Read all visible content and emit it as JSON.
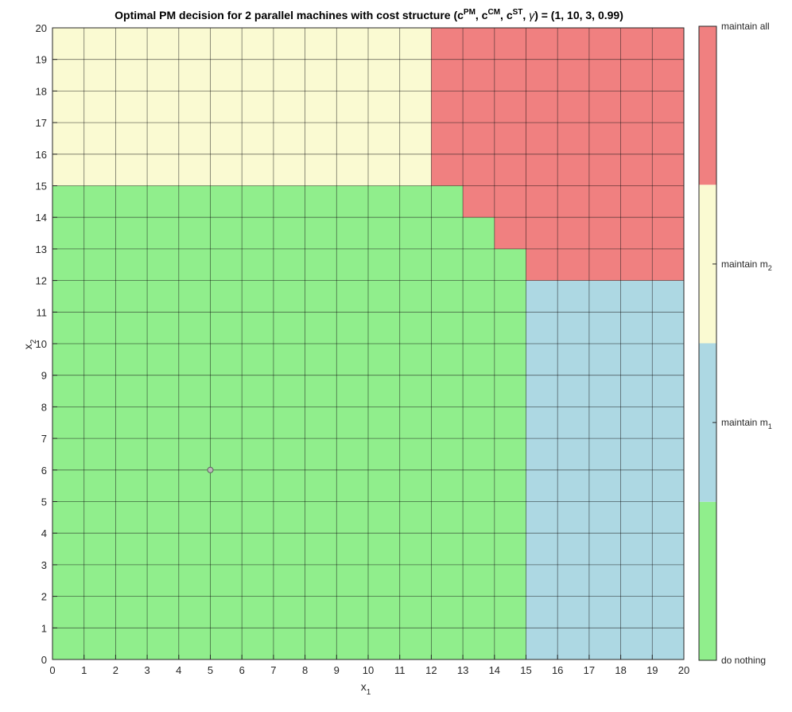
{
  "chart_data": {
    "type": "heatmap",
    "title_parts": {
      "t1": "Optimal PM decision for 2 parallel machines with cost structure (c",
      "s1": "PM",
      "t2": ", c",
      "s2": "CM",
      "t3": ", c",
      "s3": "ST",
      "t4": ", ",
      "gamma": "γ",
      "t5": ") = (1, 10, 3, 0.99)"
    },
    "xlabel": {
      "base": "x",
      "sub": "1"
    },
    "ylabel": {
      "base": "x",
      "sub": "2"
    },
    "xlim": [
      0,
      20
    ],
    "ylim": [
      0,
      20
    ],
    "xticks": [
      "0",
      "1",
      "2",
      "3",
      "4",
      "5",
      "6",
      "7",
      "8",
      "9",
      "10",
      "11",
      "12",
      "13",
      "14",
      "15",
      "16",
      "17",
      "18",
      "19",
      "20"
    ],
    "yticks": [
      "0",
      "1",
      "2",
      "3",
      "4",
      "5",
      "6",
      "7",
      "8",
      "9",
      "10",
      "11",
      "12",
      "13",
      "14",
      "15",
      "16",
      "17",
      "18",
      "19",
      "20"
    ],
    "grid": true,
    "categories": [
      {
        "code": 0,
        "label": "do nothing",
        "color": "#90ee8c"
      },
      {
        "code": 1,
        "label_base": "maintain m",
        "label_sub": "1",
        "color": "#add8e3"
      },
      {
        "code": 2,
        "label_base": "maintain m",
        "label_sub": "2",
        "color": "#fafad2"
      },
      {
        "code": 3,
        "label": "maintain all",
        "color": "#f08080"
      }
    ],
    "regions_note_rows_are_x2_from_0_to_19_cols_x1_from_0_to_19": "",
    "rows": [
      "00000000000000011111",
      "00000000000000011111",
      "00000000000000011111",
      "00000000000000011111",
      "00000000000000011111",
      "00000000000000011111",
      "00000000000000011111",
      "00000000000000011111",
      "00000000000000011111",
      "00000000000000011111",
      "00000000000000011111",
      "00000000000000011111",
      "00000000000000033333",
      "00000000000000333333",
      "00000000000003333333",
      "22222222222233333333",
      "22222222222233333333",
      "22222222222233333333",
      "22222222222233333333",
      "22222222222233333333"
    ],
    "marker": {
      "x": 5,
      "y": 6
    }
  }
}
